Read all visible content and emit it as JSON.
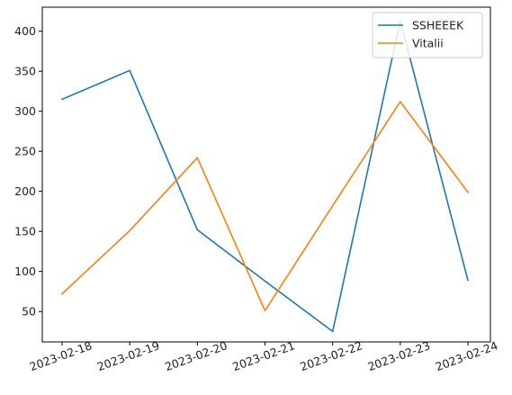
{
  "chart_data": {
    "type": "line",
    "title": "",
    "xlabel": "",
    "ylabel": "",
    "x": [
      "2023-02-18",
      "2023-02-19",
      "2023-02-20",
      "2023-02-21",
      "2023-02-22",
      "2023-02-23",
      "2023-02-24"
    ],
    "ylim": [
      12,
      430
    ],
    "yticks": [
      50,
      100,
      150,
      200,
      250,
      300,
      350,
      400
    ],
    "grid": false,
    "legend_position": "top-right",
    "series": [
      {
        "name": "S\u0003SHEEEK",
        "color": "#1f77b4",
        "values": [
          315,
          351,
          152,
          88,
          25,
          413,
          89
        ]
      },
      {
        "name": "Vitalii",
        "color": "#ff7f0e",
        "values": [
          72,
          151,
          242,
          51,
          182,
          312,
          199
        ]
      }
    ]
  }
}
